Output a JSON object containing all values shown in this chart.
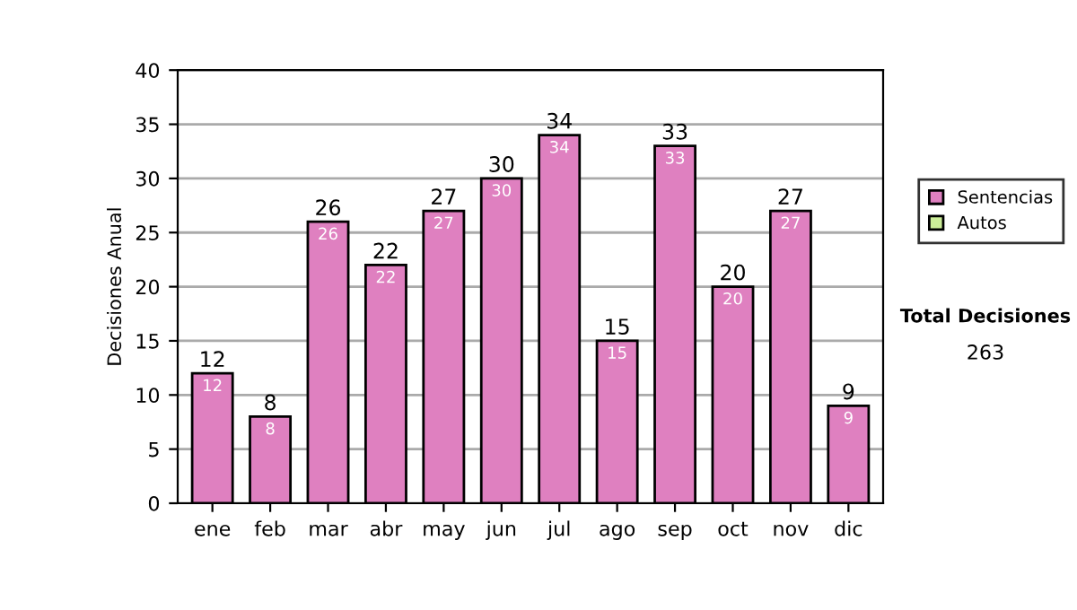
{
  "chart_data": {
    "type": "bar",
    "stacked": true,
    "ylabel": "Decisiones Anual",
    "categories": [
      "ene",
      "feb",
      "mar",
      "abr",
      "may",
      "jun",
      "jul",
      "ago",
      "sep",
      "oct",
      "nov",
      "dic"
    ],
    "series": [
      {
        "name": "Sentencias",
        "color": "#df80c0",
        "values": [
          12,
          8,
          26,
          22,
          27,
          30,
          34,
          15,
          33,
          20,
          27,
          9
        ],
        "value_labels": [
          "12",
          "8",
          "26",
          "22",
          "27",
          "30",
          "34",
          "15",
          "33",
          "20",
          "27",
          "9"
        ]
      },
      {
        "name": "Autos",
        "color": "#ccee99",
        "values": [
          null,
          null,
          null,
          null,
          null,
          null,
          null,
          null,
          null,
          null,
          null,
          null
        ]
      }
    ],
    "totals": [
      "12",
      "8",
      "26",
      "22",
      "27",
      "30",
      "34",
      "15",
      "33",
      "20",
      "27",
      "9"
    ],
    "ylim": [
      0,
      40
    ],
    "yticks": [
      0,
      5,
      10,
      15,
      20,
      25,
      30,
      35,
      40
    ],
    "grid": "y",
    "legend": "right",
    "annotations": [
      "Total Decisiones",
      "263"
    ]
  }
}
